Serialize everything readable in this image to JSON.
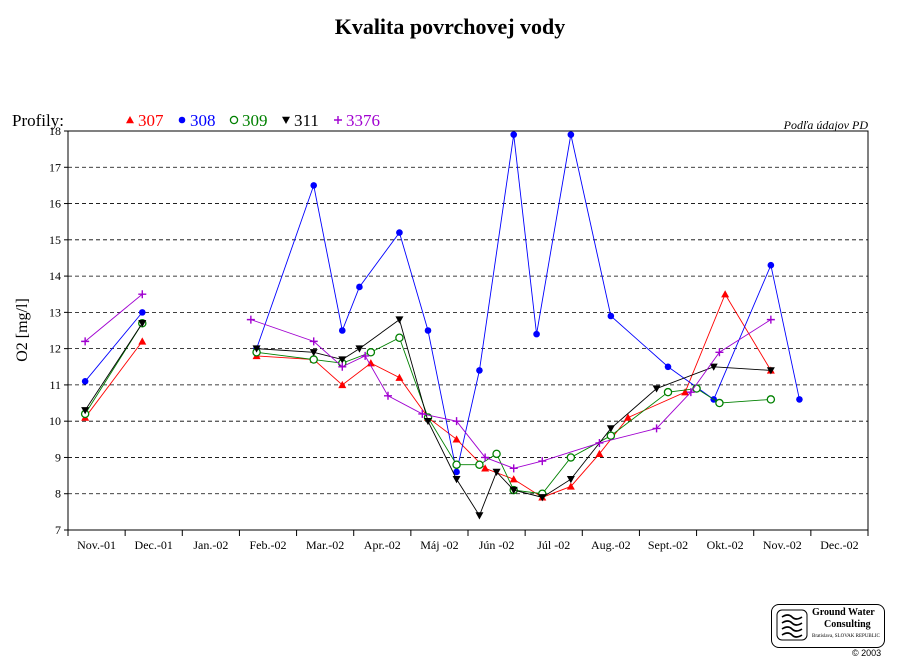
{
  "title": "Kvalita povrchovej vody",
  "source_note": "Podľa údajov PD",
  "legend_prefix": "Profily:",
  "logo": {
    "line1": "Ground Water",
    "line2": "Consulting",
    "line3": "Bratislava, SLOVAK REPUBLIC"
  },
  "copyright": "© 2003",
  "chart_data": {
    "type": "line",
    "ylabel": "O2 [mg/l]",
    "xlabel": "",
    "ylim": [
      7,
      18
    ],
    "yticks": [
      7,
      8,
      9,
      10,
      11,
      12,
      13,
      14,
      15,
      16,
      17,
      18
    ],
    "grid": "horizontal dashed",
    "legend_position": "top-left",
    "x_range": [
      0,
      14
    ],
    "categories": [
      "Nov.-01",
      "Dec.-01",
      "Jan.-02",
      "Feb.-02",
      "Mar.-02",
      "Apr.-02",
      "Máj -02",
      "Jún -02",
      "Júl -02",
      "Aug.-02",
      "Sept.-02",
      "Okt.-02",
      "Nov.-02",
      "Dec.-02"
    ],
    "series": [
      {
        "name": "307",
        "color": "#ff0000",
        "marker": "triangle-up",
        "x": [
          0.3,
          1.3,
          3.3,
          4.3,
          4.8,
          5.3,
          5.8,
          6.3,
          6.8,
          7.3,
          7.8,
          8.3,
          8.8,
          9.3,
          9.8,
          10.8,
          11.5,
          12.3,
          12.8
        ],
        "y": [
          10.1,
          12.2,
          11.8,
          11.7,
          11.0,
          11.6,
          11.2,
          10.1,
          9.5,
          8.7,
          8.4,
          7.9,
          8.2,
          9.1,
          10.1,
          10.8,
          13.5,
          11.4,
          null
        ]
      },
      {
        "name": "308",
        "color": "#0000ff",
        "marker": "circle-filled",
        "x": [
          0.3,
          1.3,
          3.3,
          4.3,
          4.8,
          5.1,
          5.8,
          6.3,
          6.8,
          7.2,
          7.8,
          8.2,
          8.8,
          9.5,
          10.5,
          11.3,
          12.3,
          12.8
        ],
        "y": [
          11.1,
          13.0,
          12.0,
          16.5,
          12.5,
          13.7,
          15.2,
          12.5,
          8.6,
          11.4,
          17.9,
          12.4,
          17.9,
          12.9,
          11.5,
          10.6,
          14.3,
          10.6
        ]
      },
      {
        "name": "309",
        "color": "#008000",
        "marker": "circle-open",
        "x": [
          0.3,
          1.3,
          3.3,
          4.3,
          4.8,
          5.3,
          5.8,
          6.3,
          6.8,
          7.2,
          7.5,
          7.8,
          8.3,
          8.8,
          9.5,
          10.5,
          11.0,
          11.4,
          12.3,
          12.8
        ],
        "y": [
          10.2,
          12.7,
          11.9,
          11.7,
          11.6,
          11.9,
          12.3,
          10.1,
          8.8,
          8.8,
          9.1,
          8.1,
          8.0,
          9.0,
          9.6,
          10.8,
          10.9,
          10.5,
          10.6,
          null
        ]
      },
      {
        "name": "311",
        "color": "#000000",
        "marker": "triangle-down",
        "x": [
          0.3,
          1.3,
          3.3,
          4.3,
          4.8,
          5.1,
          5.8,
          6.3,
          6.8,
          7.2,
          7.5,
          7.8,
          8.3,
          8.8,
          9.5,
          10.3,
          11.3,
          12.3
        ],
        "y": [
          10.3,
          12.7,
          12.0,
          11.9,
          11.7,
          12.0,
          12.8,
          10.0,
          8.4,
          7.4,
          8.6,
          8.1,
          7.9,
          8.4,
          9.8,
          10.9,
          11.5,
          11.4
        ]
      },
      {
        "name": "3376",
        "color": "#a000d0",
        "marker": "plus",
        "x": [
          0.3,
          1.3,
          3.2,
          4.3,
          4.8,
          5.2,
          5.6,
          6.2,
          6.8,
          7.3,
          7.8,
          8.3,
          9.3,
          10.3,
          10.9,
          11.4,
          12.3
        ],
        "y": [
          12.2,
          13.5,
          12.8,
          12.2,
          11.5,
          11.8,
          10.7,
          10.2,
          10.0,
          9.0,
          8.7,
          8.9,
          9.4,
          9.8,
          10.8,
          11.9,
          12.8
        ]
      }
    ]
  }
}
